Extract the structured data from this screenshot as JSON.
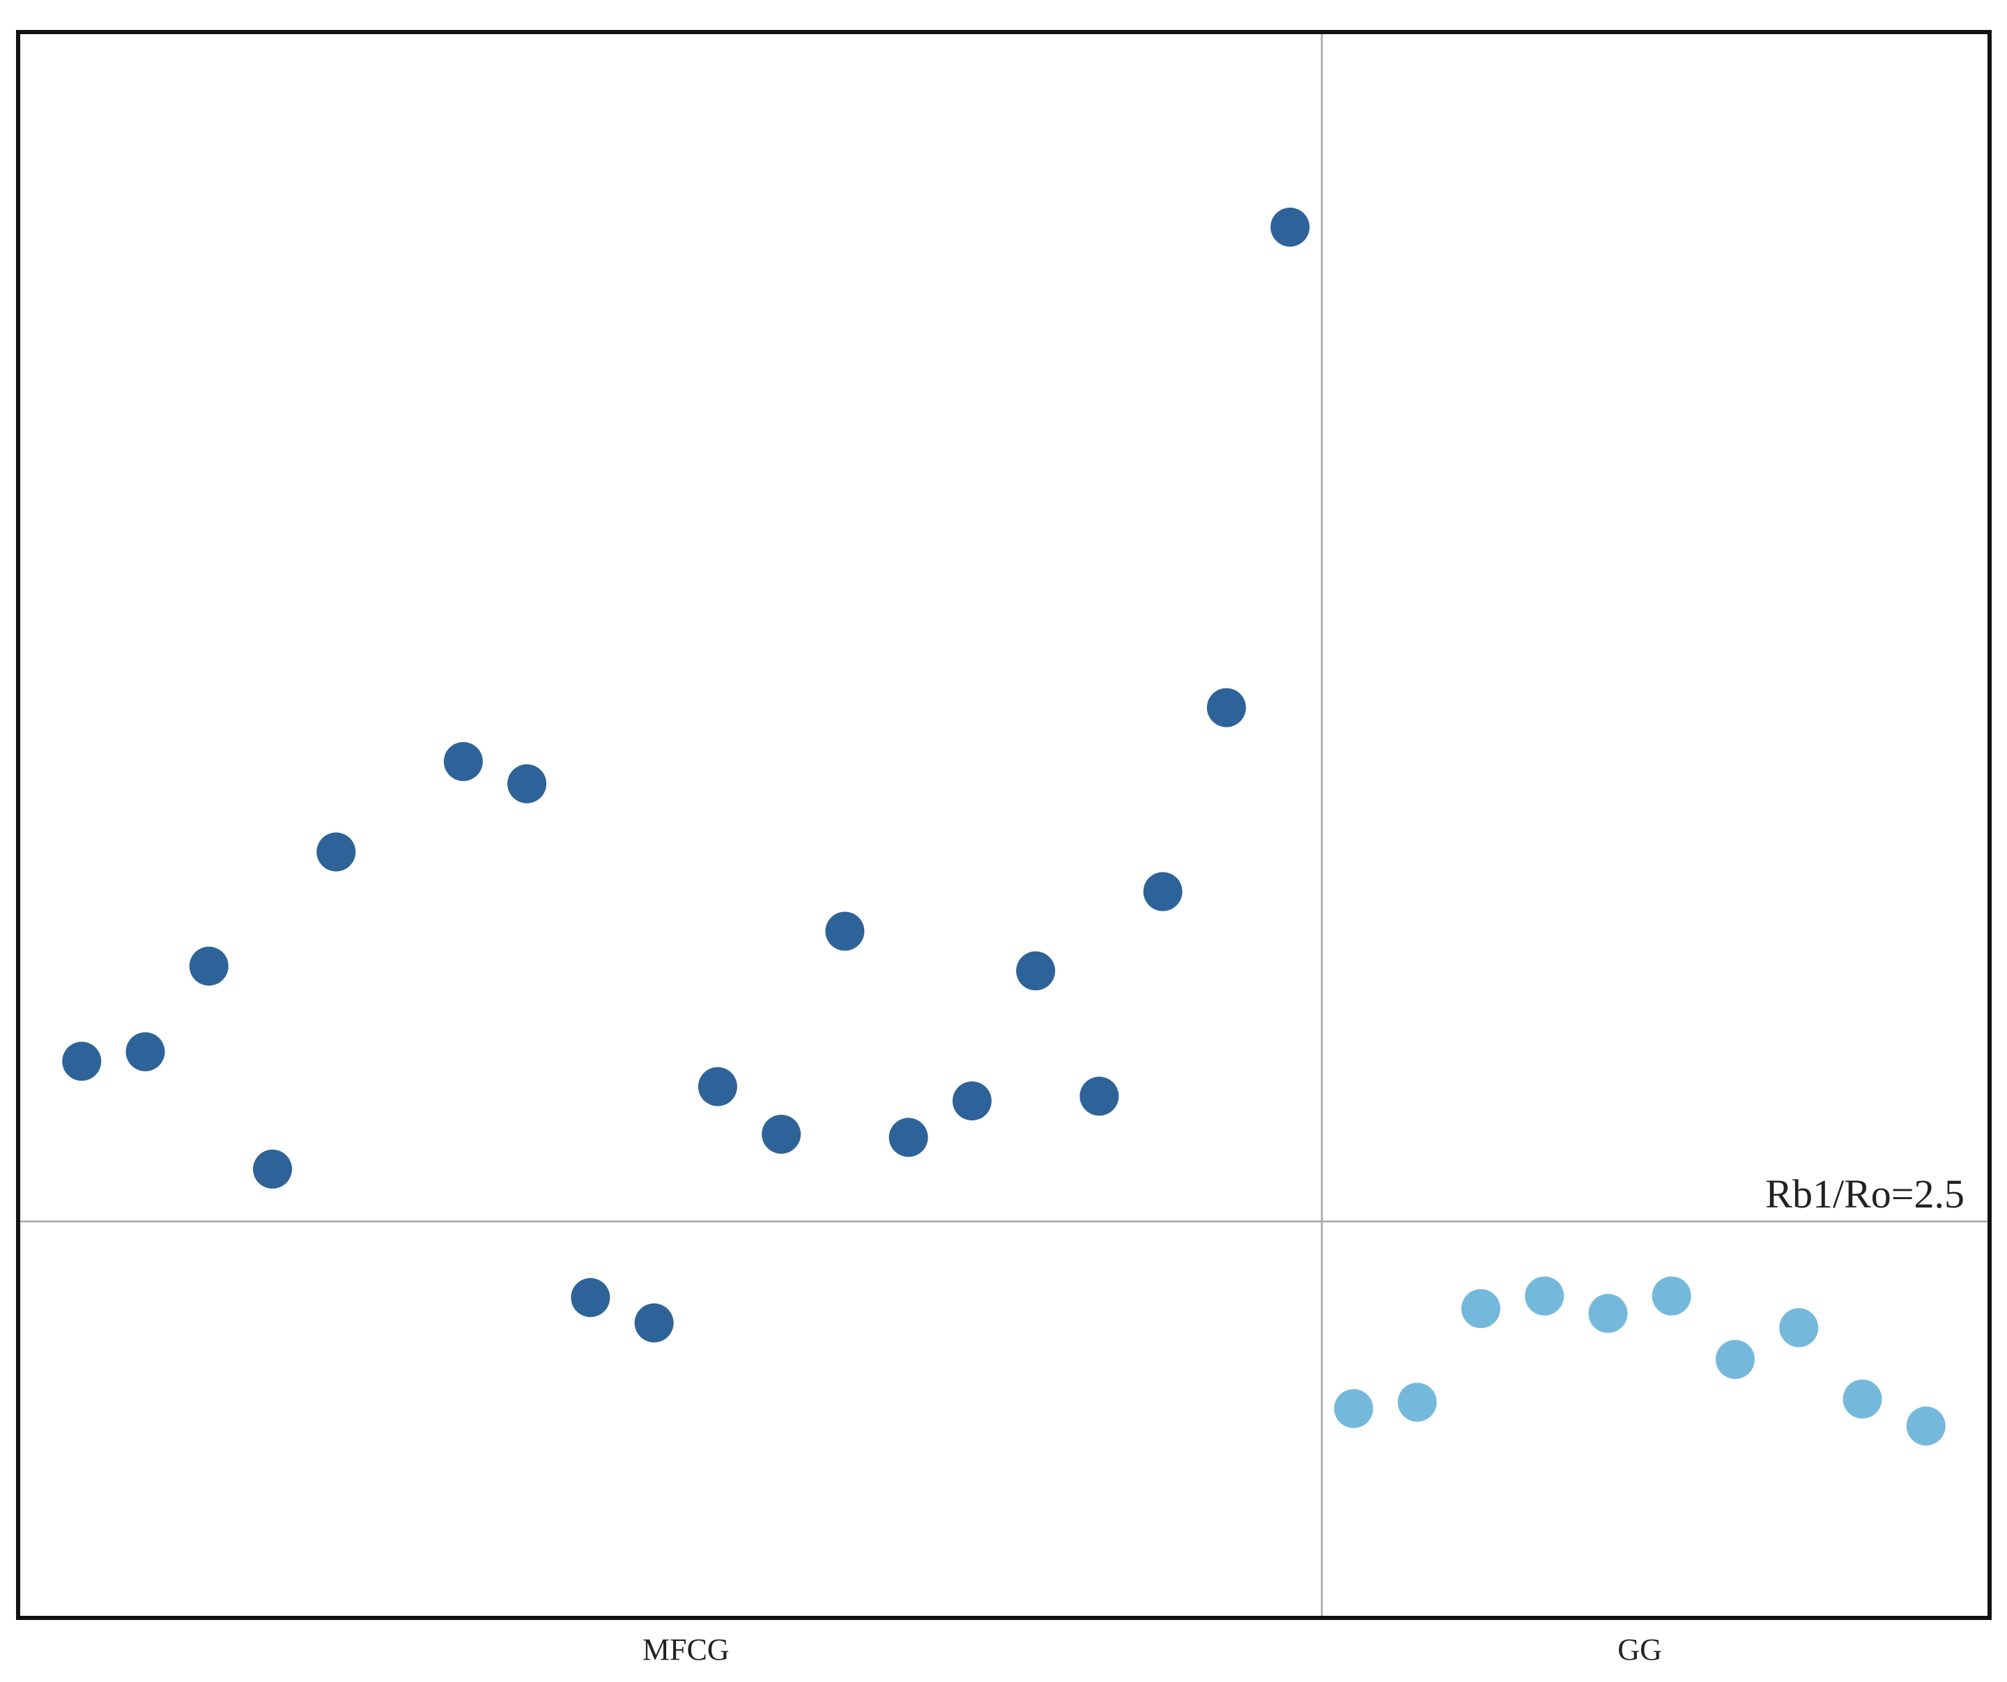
{
  "chart_data": {
    "type": "scatter",
    "xlim": [
      0,
      31
    ],
    "ylim": [
      0,
      10
    ],
    "divider_x": 20.5,
    "reference_line": {
      "value": 2.5,
      "label": "Rb1/Ro=2.5",
      "color": "#a6a6a6"
    },
    "series": [
      {
        "name": "MFCG",
        "color": "#2e6399",
        "x": [
          1,
          2,
          3,
          4,
          5,
          7,
          8,
          9,
          10,
          11,
          12,
          13,
          14,
          15,
          16,
          17,
          18,
          19,
          20
        ],
        "values": [
          3.51,
          3.57,
          4.11,
          2.83,
          4.83,
          5.4,
          5.26,
          2.02,
          1.86,
          3.35,
          3.05,
          4.33,
          3.03,
          3.26,
          4.08,
          3.29,
          4.58,
          5.74,
          8.77
        ]
      },
      {
        "name": "GG",
        "color": "#74b9dc",
        "x": [
          21,
          22,
          23,
          24,
          25,
          26,
          27,
          28,
          29,
          30
        ],
        "values": [
          1.32,
          1.36,
          1.95,
          2.03,
          1.92,
          2.03,
          1.63,
          1.83,
          1.38,
          1.21
        ]
      }
    ]
  }
}
